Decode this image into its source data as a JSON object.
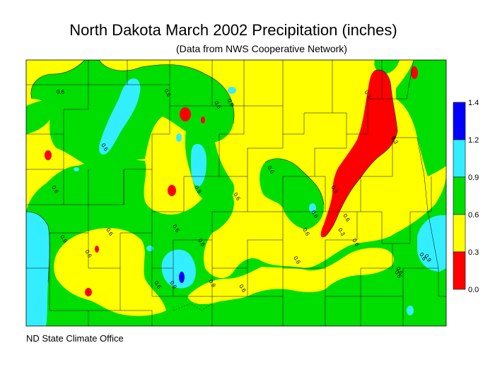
{
  "title": "North Dakota March 2002 Precipitation (inches)",
  "subtitle": "(Data from NWS Cooperative Network)",
  "credit": "ND State Climate Office",
  "legend": {
    "ticks": [
      "1.4",
      "1.2",
      "0.9",
      "0.6",
      "0.3",
      "0.0"
    ],
    "bins": [
      {
        "range": "1.2-1.4",
        "color": "#0000ff"
      },
      {
        "range": "0.9-1.2",
        "color": "#33eeff"
      },
      {
        "range": "0.6-0.9",
        "color": "#00dd00"
      },
      {
        "range": "0.3-0.6",
        "color": "#ffff00"
      },
      {
        "range": "0.0-0.3",
        "color": "#ff0000"
      }
    ]
  },
  "contour_labels": [
    "0.6",
    "0.6",
    "0.6",
    "0.9",
    "0.6",
    "0.6",
    "0.9",
    "0.6",
    "0.6",
    "0.6",
    "0.6",
    "0.9",
    "0.6",
    "0.9",
    "0.6",
    "0.6",
    "0.6",
    "0.6",
    "0.3",
    "0.3",
    "0.3",
    "0.3",
    "0.6",
    "0.6",
    "0.6",
    "0.9",
    "0.6",
    "0.9",
    "0.6",
    "0.6",
    "0.6"
  ]
}
